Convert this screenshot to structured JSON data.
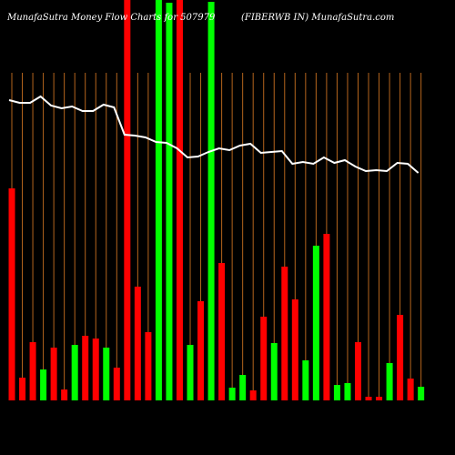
{
  "chart_data": {
    "type": "bar",
    "title": "MunafaSutra  Money Flow  Charts for 507979",
    "subtitle": "(FIBERWB IN) MunafaSutra.com",
    "ylim": [
      0,
      440
    ],
    "grid": true,
    "grid_color": "#b5651d",
    "values": [
      233,
      25,
      64,
      34,
      58,
      12,
      61,
      71,
      68,
      58,
      36,
      445,
      125,
      75,
      445,
      437,
      445,
      61,
      109,
      438,
      151,
      14,
      28,
      11,
      92,
      63,
      147,
      111,
      44,
      170,
      183,
      17,
      19,
      64,
      4,
      4,
      41,
      94,
      24,
      15
    ],
    "colors": [
      "#ff0000",
      "#ff0000",
      "#ff0000",
      "#00ff00",
      "#ff0000",
      "#ff0000",
      "#00ff00",
      "#ff0000",
      "#ff0000",
      "#00ff00",
      "#ff0000",
      "#ff0000",
      "#ff0000",
      "#ff0000",
      "#00ff00",
      "#00ff00",
      "#ff0000",
      "#00ff00",
      "#ff0000",
      "#00ff00",
      "#ff0000",
      "#00ff00",
      "#00ff00",
      "#ff0000",
      "#ff0000",
      "#00ff00",
      "#ff0000",
      "#ff0000",
      "#00ff00",
      "#00ff00",
      "#ff0000",
      "#00ff00",
      "#00ff00",
      "#ff0000",
      "#ff0000",
      "#ff0000",
      "#00ff00",
      "#ff0000",
      "#ff0000",
      "#00ff00"
    ],
    "line_values": [
      330,
      327,
      327,
      334,
      324,
      321,
      323,
      318,
      318,
      325,
      322,
      292,
      291,
      289,
      284,
      283,
      277,
      267,
      268,
      273,
      277,
      275,
      280,
      282,
      272,
      273,
      274,
      260,
      262,
      260,
      267,
      261,
      264,
      257,
      252,
      253,
      252,
      261,
      260,
      250
    ],
    "line_color": "#ffffff"
  }
}
